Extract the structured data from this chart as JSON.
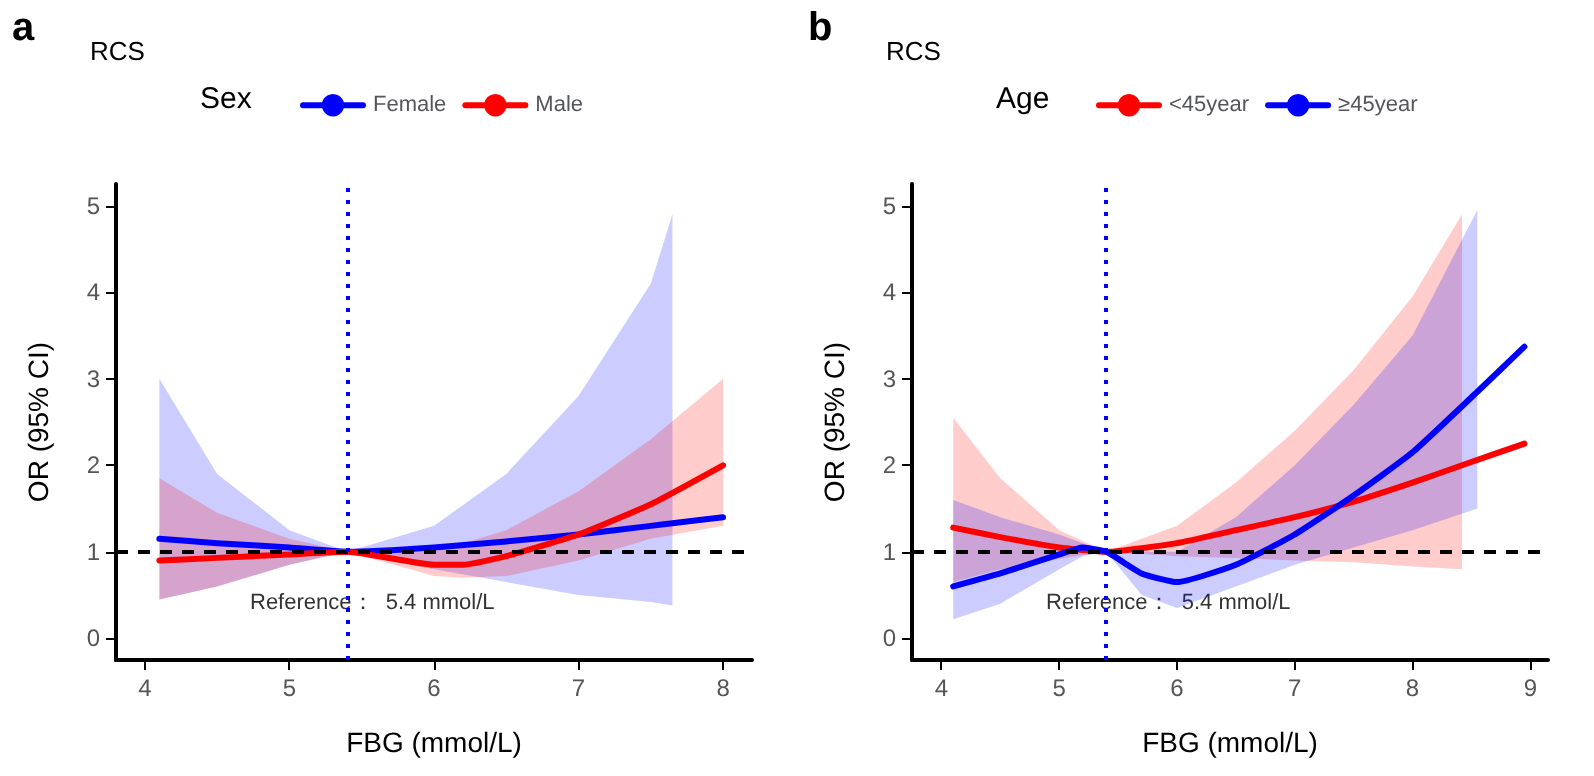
{
  "chart_data": [
    {
      "type": "line",
      "title": "RCS",
      "annotations": [
        "a",
        "Reference：  5.4 mmol/L"
      ],
      "xlabel": "FBG (mmol/L)",
      "ylabel": "OR (95% CI)",
      "legend_title": "Sex",
      "legend": "top",
      "marker": "none",
      "line_style": "solid",
      "grid": false,
      "xlim": [
        3.8,
        8.2
      ],
      "xticks": [
        4,
        5,
        6,
        7,
        8
      ],
      "ylim": [
        -0.25,
        5.25
      ],
      "yticks": [
        0,
        1,
        2,
        3,
        4,
        5
      ],
      "ref_lines": [
        {
          "axis": "y",
          "value": 1,
          "color": "#000000",
          "line_style": "dashed"
        },
        {
          "axis": "x",
          "value": 5.4,
          "color": "#0000ff",
          "line_style": "dotted"
        }
      ],
      "series": [
        {
          "name": "Female",
          "color": "#0000ff",
          "x": [
            4.1,
            4.5,
            5,
            5.4,
            6,
            6.5,
            7,
            7.5,
            7.65,
            8
          ],
          "values": [
            1.15,
            1.1,
            1.05,
            1.0,
            1.05,
            1.12,
            1.2,
            1.3,
            1.33,
            1.4
          ],
          "lower": [
            0.45,
            0.6,
            0.85,
            1.0,
            0.8,
            0.65,
            0.5,
            0.42,
            0.38,
            null
          ],
          "upper": [
            3.0,
            1.9,
            1.25,
            1.0,
            1.3,
            1.9,
            2.8,
            4.1,
            4.9,
            null
          ]
        },
        {
          "name": "Male",
          "color": "#ff0000",
          "x": [
            4.1,
            4.5,
            5,
            5.4,
            6,
            6.2,
            6.5,
            7,
            7.5,
            8
          ],
          "values": [
            0.9,
            0.93,
            0.97,
            1.0,
            0.85,
            0.85,
            0.95,
            1.2,
            1.55,
            2.0
          ],
          "lower": [
            0.45,
            0.6,
            0.85,
            1.0,
            0.72,
            0.7,
            0.72,
            0.9,
            1.15,
            1.3
          ],
          "upper": [
            1.85,
            1.45,
            1.15,
            1.0,
            1.0,
            1.1,
            1.25,
            1.7,
            2.3,
            3.0
          ]
        }
      ]
    },
    {
      "type": "line",
      "title": "RCS",
      "annotations": [
        "b",
        "Reference：  5.4 mmol/L"
      ],
      "xlabel": "FBG (mmol/L)",
      "ylabel": "OR (95% CI)",
      "legend_title": "Age",
      "legend": "top",
      "marker": "none",
      "line_style": "solid",
      "grid": false,
      "xlim": [
        3.75,
        9.15
      ],
      "xticks": [
        4,
        5,
        6,
        7,
        8,
        9
      ],
      "ylim": [
        -0.25,
        5.25
      ],
      "yticks": [
        0,
        1,
        2,
        3,
        4,
        5
      ],
      "ref_lines": [
        {
          "axis": "y",
          "value": 1,
          "color": "#000000",
          "line_style": "dashed"
        },
        {
          "axis": "x",
          "value": 5.4,
          "color": "#0000ff",
          "line_style": "dotted"
        }
      ],
      "series": [
        {
          "name": "<45year",
          "color": "#ff0000",
          "x": [
            4.1,
            4.5,
            5,
            5.4,
            6,
            6.5,
            7,
            7.5,
            8,
            8.42,
            8.95
          ],
          "values": [
            1.28,
            1.17,
            1.05,
            1.0,
            1.1,
            1.25,
            1.4,
            1.58,
            1.8,
            2.0,
            2.25
          ],
          "lower": [
            0.65,
            0.8,
            0.92,
            1.0,
            0.95,
            0.93,
            0.9,
            0.88,
            0.83,
            0.8,
            null
          ],
          "upper": [
            2.55,
            1.85,
            1.25,
            1.0,
            1.3,
            1.8,
            2.4,
            3.1,
            3.95,
            4.9,
            null
          ]
        },
        {
          "name": "≥45year",
          "color": "#0000ff",
          "x": [
            4.1,
            4.5,
            5,
            5.2,
            5.4,
            5.7,
            6,
            6.5,
            7,
            7.5,
            8,
            8.55,
            8.95
          ],
          "values": [
            0.6,
            0.75,
            0.97,
            1.05,
            1.0,
            0.75,
            0.65,
            0.85,
            1.2,
            1.65,
            2.15,
            2.85,
            3.37
          ],
          "lower": [
            0.22,
            0.4,
            0.8,
            0.95,
            1.0,
            0.5,
            0.35,
            0.6,
            0.85,
            1.05,
            1.25,
            1.5,
            null
          ],
          "upper": [
            1.6,
            1.4,
            1.2,
            1.1,
            1.0,
            1.0,
            1.0,
            1.4,
            2.0,
            2.7,
            3.5,
            4.95,
            null
          ]
        }
      ]
    }
  ]
}
